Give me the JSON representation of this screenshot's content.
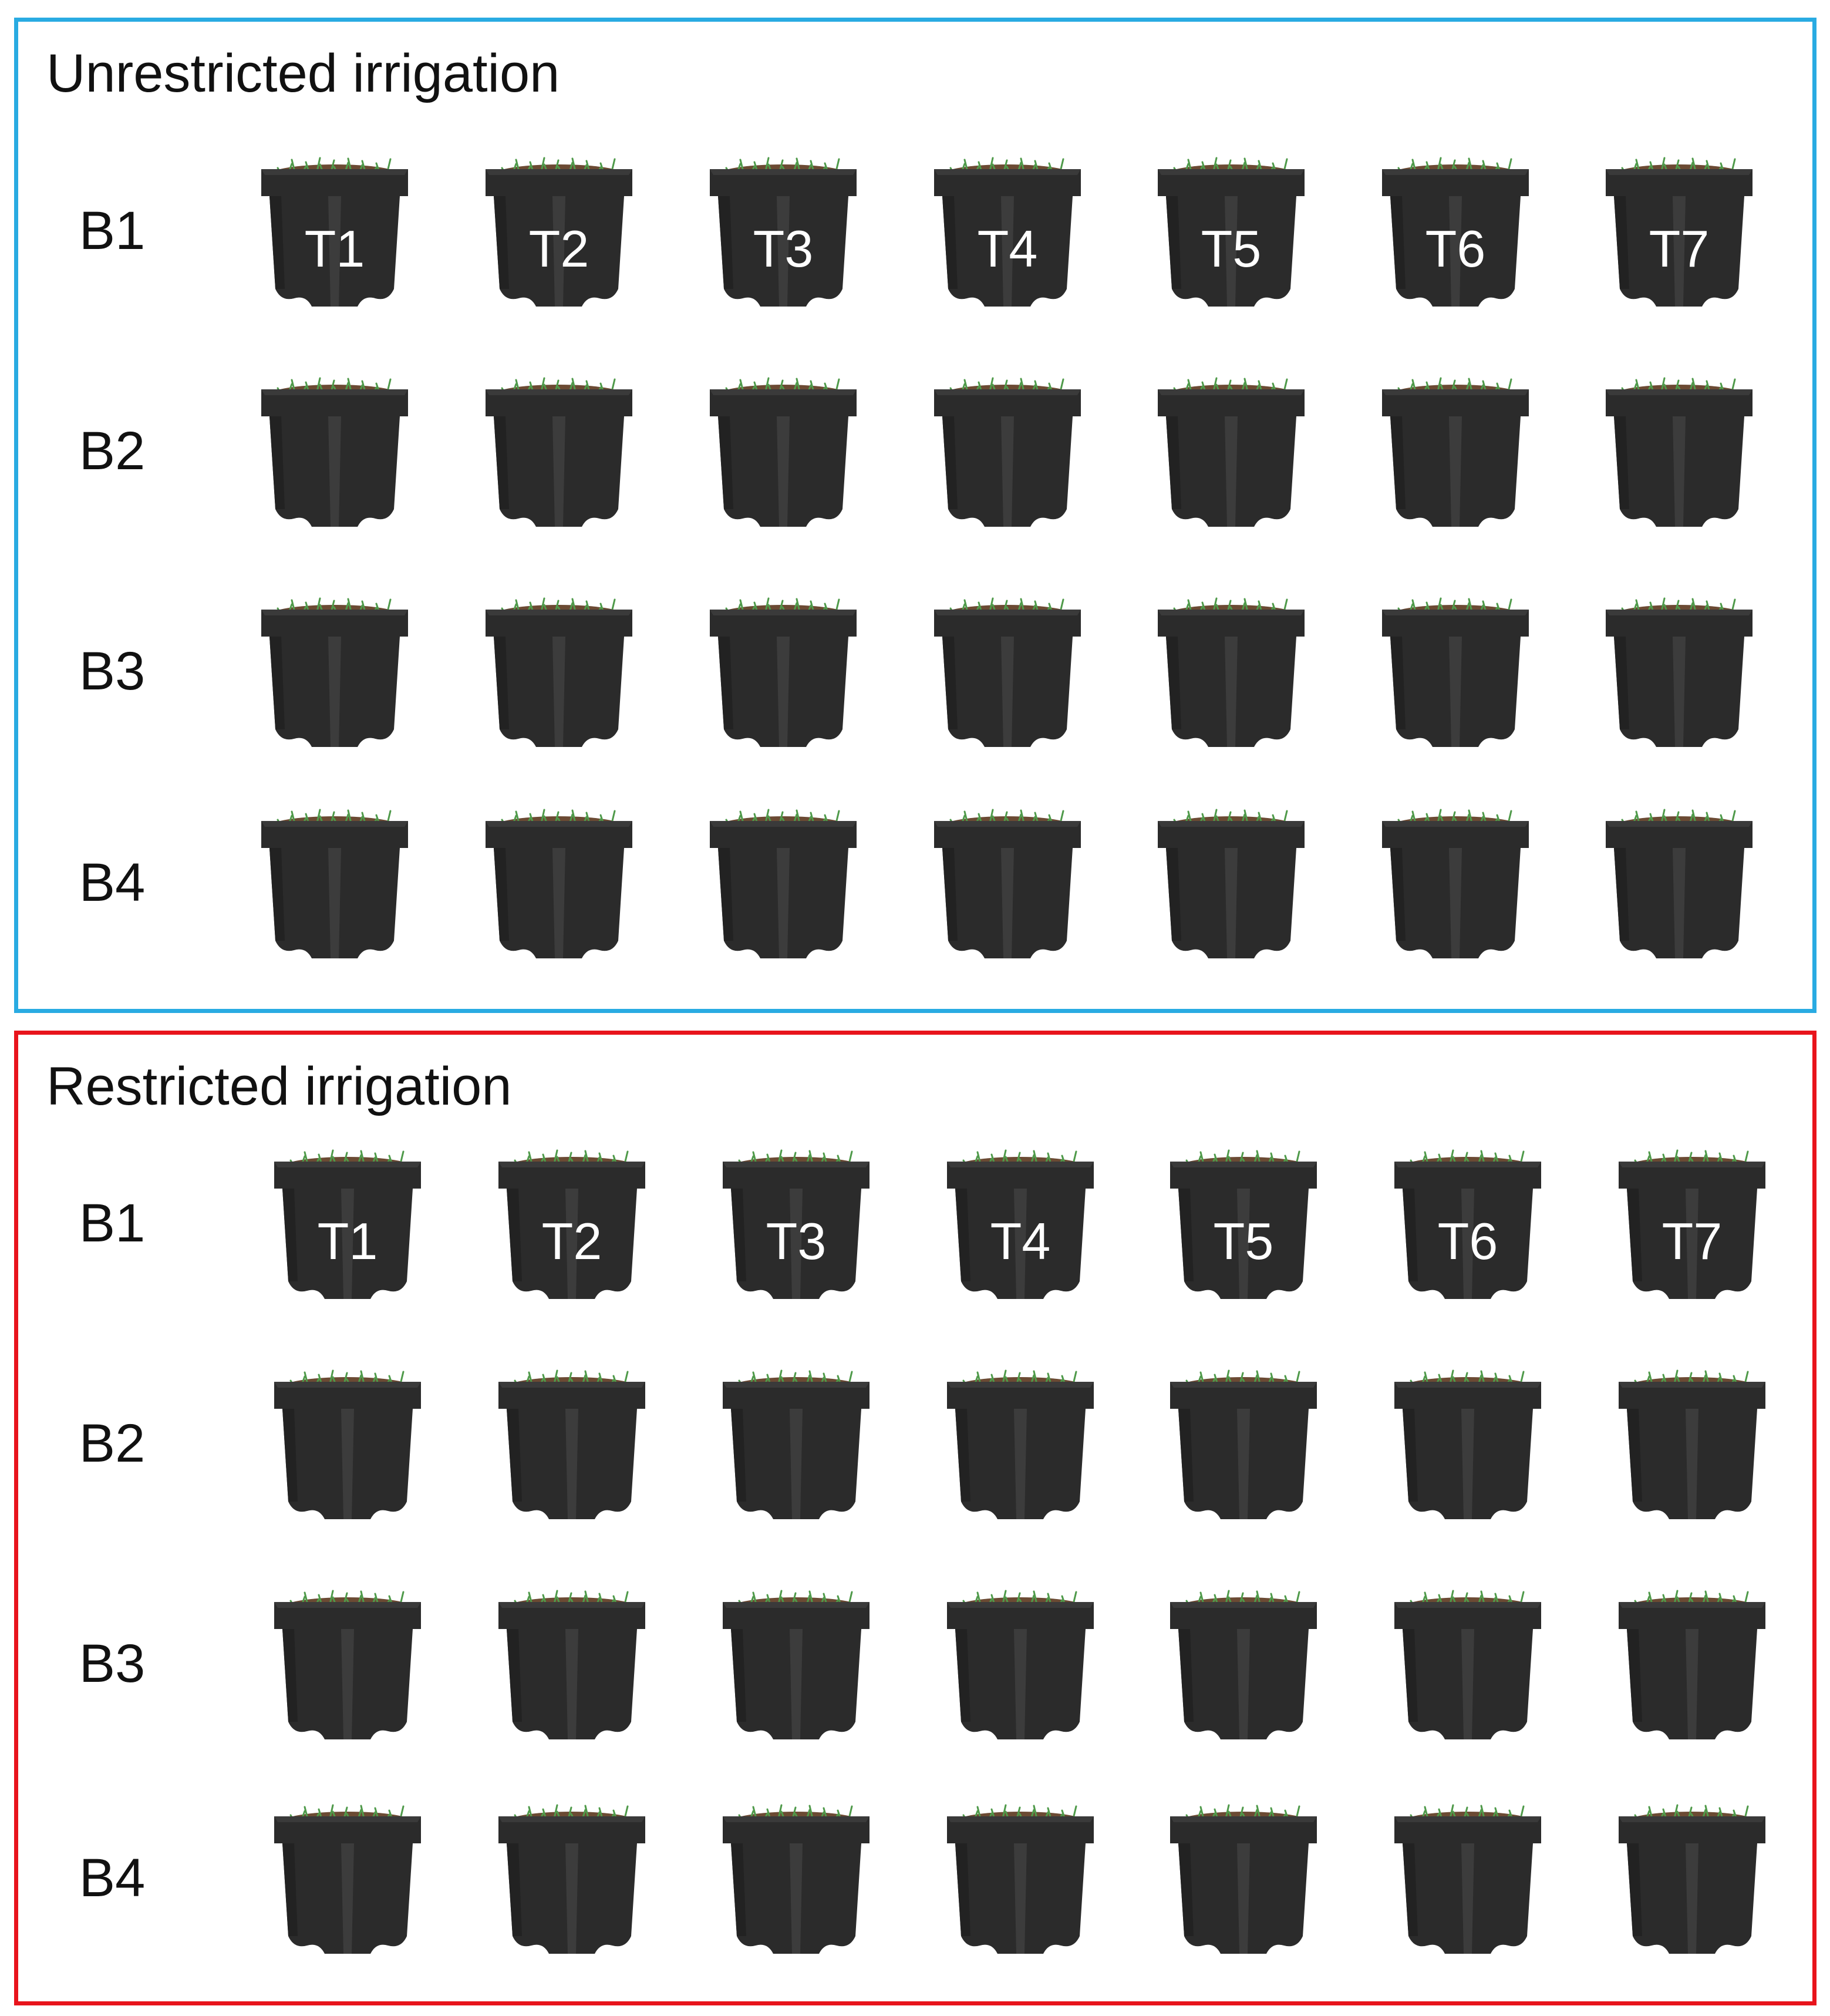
{
  "colors": {
    "unrestricted_border": "#29abe2",
    "restricted_border": "#e8141c",
    "pot_body": "#2b2b2b",
    "plant": "#4f9a4a",
    "soil": "#6b4a33"
  },
  "icons": {
    "pot": "plant-pot-icon"
  },
  "panels": [
    {
      "title": "Unrestricted irrigation",
      "border_color_key": "unrestricted_border",
      "blocks": [
        {
          "label": "B1",
          "pots": [
            "T1",
            "T2",
            "T3",
            "T4",
            "T5",
            "T6",
            "T7"
          ]
        },
        {
          "label": "B2",
          "pots": [
            "",
            "",
            "",
            "",
            "",
            "",
            ""
          ]
        },
        {
          "label": "B3",
          "pots": [
            "",
            "",
            "",
            "",
            "",
            "",
            ""
          ]
        },
        {
          "label": "B4",
          "pots": [
            "",
            "",
            "",
            "",
            "",
            "",
            ""
          ]
        }
      ]
    },
    {
      "title": "Restricted irrigation",
      "border_color_key": "restricted_border",
      "blocks": [
        {
          "label": "B1",
          "pots": [
            "T1",
            "T2",
            "T3",
            "T4",
            "T5",
            "T6",
            "T7"
          ]
        },
        {
          "label": "B2",
          "pots": [
            "",
            "",
            "",
            "",
            "",
            "",
            ""
          ]
        },
        {
          "label": "B3",
          "pots": [
            "",
            "",
            "",
            "",
            "",
            "",
            ""
          ]
        },
        {
          "label": "B4",
          "pots": [
            "",
            "",
            "",
            "",
            "",
            "",
            ""
          ]
        }
      ]
    }
  ]
}
